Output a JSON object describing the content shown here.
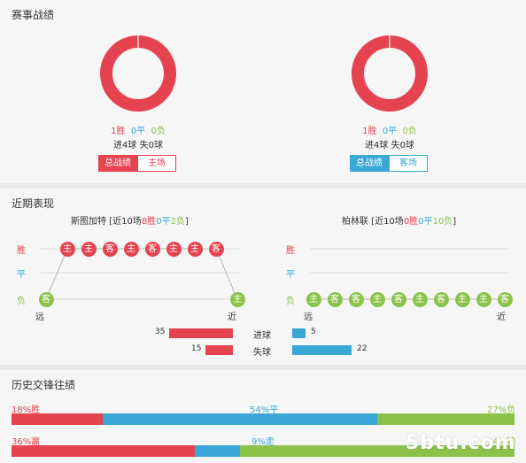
{
  "record": {
    "title": "赛事战绩",
    "home": {
      "win": "1胜",
      "draw": "0平",
      "loss": "0负",
      "goals": "进4球  失0球",
      "tab_total": "总战绩",
      "tab_venue": "主场",
      "win_fraction": 1.0
    },
    "away": {
      "win": "1胜",
      "draw": "0平",
      "loss": "0负",
      "goals": "进4球  失0球",
      "tab_total": "总战绩",
      "tab_venue": "客场",
      "win_fraction": 1.0
    }
  },
  "recent": {
    "title": "近期表现",
    "left": {
      "team": "斯图加特",
      "summary_pre": " [近10场",
      "wins": "8胜",
      "draws": "0平",
      "losses": "2负",
      "summary_post": "]",
      "results": [
        {
          "res": "loss",
          "venue": "客"
        },
        {
          "res": "win",
          "venue": "主"
        },
        {
          "res": "win",
          "venue": "主"
        },
        {
          "res": "win",
          "venue": "客"
        },
        {
          "res": "win",
          "venue": "主"
        },
        {
          "res": "win",
          "venue": "客"
        },
        {
          "res": "win",
          "venue": "主"
        },
        {
          "res": "win",
          "venue": "主"
        },
        {
          "res": "win",
          "venue": "客"
        },
        {
          "res": "loss",
          "venue": "主"
        }
      ]
    },
    "right": {
      "team": "柏林联",
      "summary_pre": " [近10场",
      "wins": "0胜",
      "draws": "0平",
      "losses": "10负",
      "summary_post": "]",
      "results": [
        {
          "res": "loss",
          "venue": "主"
        },
        {
          "res": "loss",
          "venue": "客"
        },
        {
          "res": "loss",
          "venue": "客"
        },
        {
          "res": "loss",
          "venue": "主"
        },
        {
          "res": "loss",
          "venue": "客"
        },
        {
          "res": "loss",
          "venue": "主"
        },
        {
          "res": "loss",
          "venue": "客"
        },
        {
          "res": "loss",
          "venue": "主"
        },
        {
          "res": "loss",
          "venue": "主"
        },
        {
          "res": "loss",
          "venue": "客"
        }
      ]
    },
    "labels": {
      "win": "胜",
      "draw": "平",
      "loss": "负",
      "far": "远",
      "near": "近"
    },
    "goals": {
      "scored_label": "进球",
      "conceded_label": "失球",
      "left_scored": 35,
      "left_conceded": 15,
      "right_scored": 5,
      "right_conceded": 22
    }
  },
  "history": {
    "title": "历史交锋往绩",
    "row1": {
      "win": "18%胜",
      "draw": "54%平",
      "loss": "27%负",
      "fractions": [
        18,
        54,
        27
      ]
    },
    "row2": {
      "win": "36%赢",
      "draw": "9%走",
      "loss": "54%输",
      "fractions": [
        36,
        9,
        54
      ]
    }
  },
  "colors": {
    "red": "#e4434f",
    "blue": "#3aa7d6",
    "green": "#8bc34a"
  },
  "watermark": "5btu.com"
}
